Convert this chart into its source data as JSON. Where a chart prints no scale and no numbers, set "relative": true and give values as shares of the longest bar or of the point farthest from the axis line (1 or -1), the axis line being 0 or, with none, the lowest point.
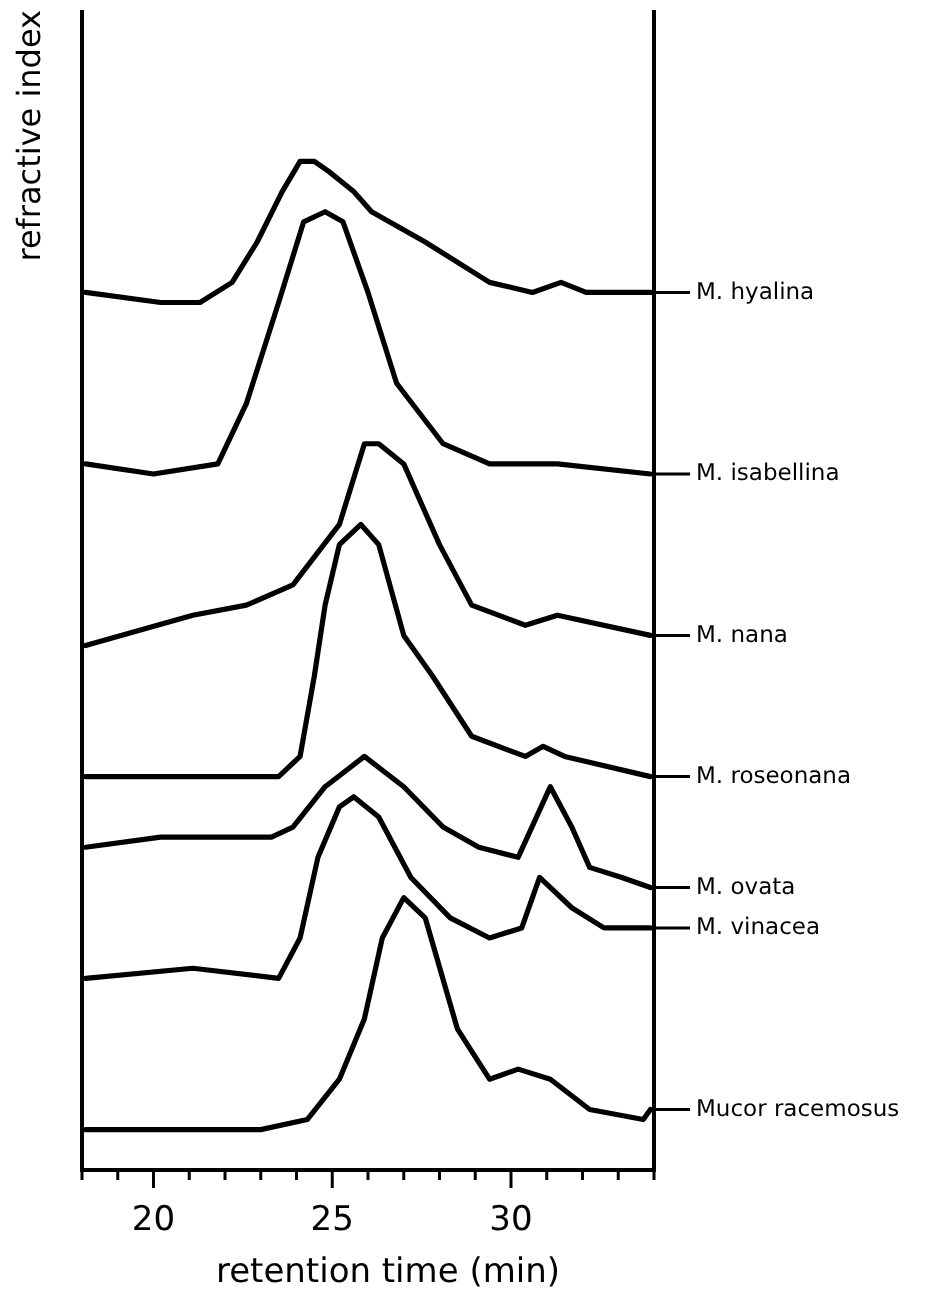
{
  "chart_data": {
    "type": "line",
    "relative": true,
    "xlabel": "retention time (min)",
    "ylabel": "refractive index",
    "xlim": [
      18,
      34
    ],
    "xticks": [
      {
        "value": 18,
        "label": null
      },
      {
        "value": 19,
        "label": null
      },
      20,
      {
        "value": 21,
        "label": null
      },
      {
        "value": 22,
        "label": null
      },
      {
        "value": 23,
        "label": null
      },
      {
        "value": 24,
        "label": null
      },
      25,
      {
        "value": 26,
        "label": null
      },
      {
        "value": 27,
        "label": null
      },
      {
        "value": 28,
        "label": null
      },
      {
        "value": 29,
        "label": null
      },
      30,
      {
        "value": 31,
        "label": null
      },
      {
        "value": 32,
        "label": null
      },
      {
        "value": 33,
        "label": null
      },
      {
        "value": 34,
        "label": null
      }
    ],
    "line_style": "solid",
    "legend": "right",
    "marker": "none",
    "grid": false,
    "series": [
      {
        "name": "M. hyalina",
        "color": "#000000",
        "x": [
          18.1,
          20.2,
          21.3,
          22.2,
          22.9,
          23.6,
          24.1,
          24.5,
          24.9,
          25.6,
          26.1,
          27.6,
          29.4,
          30.6,
          31.4,
          32.1,
          32.8,
          33.9
        ],
        "values": [
          0.87,
          0.86,
          0.86,
          0.88,
          0.92,
          0.97,
          1.0,
          1.0,
          0.99,
          0.97,
          0.95,
          0.92,
          0.88,
          0.87,
          0.88,
          0.87,
          0.87,
          0.87
        ]
      },
      {
        "name": "M. isabellina",
        "color": "#000000",
        "x": [
          18.1,
          20.0,
          21.8,
          22.6,
          23.5,
          24.2,
          24.8,
          25.3,
          26.0,
          26.8,
          28.1,
          29.4,
          31.3,
          33.9
        ],
        "values": [
          0.7,
          0.69,
          0.7,
          0.76,
          0.86,
          0.94,
          0.95,
          0.94,
          0.87,
          0.78,
          0.72,
          0.7,
          0.7,
          0.69
        ]
      },
      {
        "name": "M. nana",
        "color": "#000000",
        "x": [
          18.1,
          21.1,
          22.6,
          23.9,
          25.2,
          25.9,
          26.3,
          27.0,
          28.0,
          28.9,
          30.4,
          31.3,
          33.9
        ],
        "values": [
          0.52,
          0.55,
          0.56,
          0.58,
          0.64,
          0.72,
          0.72,
          0.7,
          0.62,
          0.56,
          0.54,
          0.55,
          0.53
        ]
      },
      {
        "name": "M. roseonana",
        "color": "#000000",
        "x": [
          18.1,
          21.1,
          23.5,
          24.1,
          24.5,
          24.8,
          25.2,
          25.8,
          26.3,
          27.0,
          27.8,
          28.9,
          30.4,
          30.9,
          31.5,
          33.9
        ],
        "values": [
          0.39,
          0.39,
          0.39,
          0.41,
          0.49,
          0.56,
          0.62,
          0.64,
          0.62,
          0.53,
          0.49,
          0.43,
          0.41,
          0.42,
          0.41,
          0.39
        ]
      },
      {
        "name": "M. ovata",
        "color": "#000000",
        "x": [
          18.1,
          20.2,
          23.3,
          23.9,
          24.8,
          25.9,
          27.0,
          28.1,
          29.1,
          30.2,
          31.1,
          31.7,
          32.2,
          33.1,
          33.9
        ],
        "values": [
          0.32,
          0.33,
          0.33,
          0.34,
          0.38,
          0.41,
          0.38,
          0.34,
          0.32,
          0.31,
          0.38,
          0.34,
          0.3,
          0.29,
          0.28
        ]
      },
      {
        "name": "M. vinacea",
        "color": "#000000",
        "x": [
          18.1,
          21.1,
          23.5,
          24.1,
          24.6,
          25.2,
          25.6,
          26.3,
          27.2,
          28.3,
          29.4,
          30.3,
          30.8,
          31.7,
          32.6,
          33.9
        ],
        "values": [
          0.19,
          0.2,
          0.19,
          0.23,
          0.31,
          0.36,
          0.37,
          0.35,
          0.29,
          0.25,
          0.23,
          0.24,
          0.29,
          0.26,
          0.24,
          0.24
        ]
      },
      {
        "name": "Mucor racemosus",
        "color": "#000000",
        "x": [
          18.1,
          20.6,
          23.0,
          24.3,
          25.2,
          25.9,
          26.4,
          27.0,
          27.6,
          28.5,
          29.4,
          30.2,
          31.1,
          32.2,
          33.7,
          33.9
        ],
        "values": [
          0.04,
          0.04,
          0.04,
          0.05,
          0.09,
          0.15,
          0.23,
          0.27,
          0.25,
          0.14,
          0.09,
          0.1,
          0.09,
          0.06,
          0.05,
          0.06
        ]
      }
    ]
  }
}
